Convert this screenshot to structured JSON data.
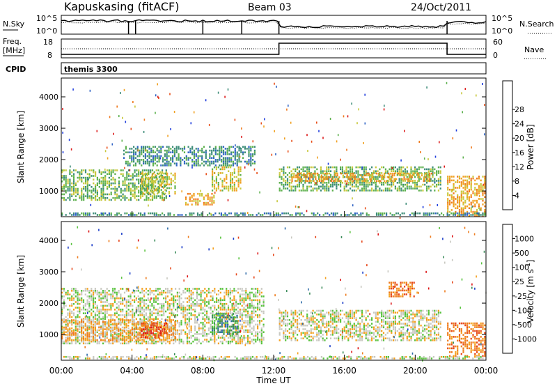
{
  "header": {
    "station": "Kapuskasing (fitACF)",
    "beam": "Beam 03",
    "date": "24/Oct/2011"
  },
  "summary": {
    "nsky_label": "N.Sky",
    "nsearch_label": "N.Search",
    "nsky_ticks": [
      "10^5",
      "10^0"
    ],
    "nsearch_ticks": [
      "10^5",
      "10^0"
    ],
    "freq_label_1": "Freq.",
    "freq_label_2": "[MHz]",
    "freq_ticks": [
      "18",
      "8"
    ],
    "nave_label": "Nave",
    "nave_ticks": [
      "60",
      "0"
    ],
    "cpid_label": "CPID",
    "cpid_value": "themis 3300",
    "markers_hours": [
      3.8,
      4.2,
      8.0,
      10.2,
      12.3,
      21.8
    ]
  },
  "x_axis": {
    "label": "Time UT",
    "ticks": [
      "00:00",
      "04:00",
      "08:00",
      "12:00",
      "16:00",
      "20:00",
      "00:00"
    ],
    "range_hours": [
      0,
      24
    ]
  },
  "chart_data": [
    {
      "type": "heatmap",
      "name": "power",
      "ylabel": "Slant Range [km]",
      "ylim": [
        180,
        4600
      ],
      "yticks": [
        "1000",
        "2000",
        "3000",
        "4000"
      ],
      "colorbar": {
        "label": "Power [dB]",
        "ticks": [
          "4",
          "8",
          "12",
          "16",
          "20",
          "24",
          "28"
        ],
        "colors": [
          "#1e3cdc",
          "#2f63c4",
          "#3c8c78",
          "#5cb04c",
          "#c8c83c",
          "#f0a020",
          "#ef7a1e",
          "#e84f1a",
          "#dc1a1a"
        ]
      },
      "regions": [
        {
          "t": [
            0.0,
            6.0
          ],
          "r": [
            700,
            1700
          ],
          "level": 3
        },
        {
          "t": [
            3.5,
            11.0
          ],
          "r": [
            1800,
            2450
          ],
          "level": 2
        },
        {
          "t": [
            4.5,
            6.5
          ],
          "r": [
            900,
            1600
          ],
          "level": 4
        },
        {
          "t": [
            7.0,
            8.7
          ],
          "r": [
            550,
            950
          ],
          "level": 5
        },
        {
          "t": [
            8.5,
            10.2
          ],
          "r": [
            1000,
            1800
          ],
          "level": 4
        },
        {
          "t": [
            12.3,
            21.5
          ],
          "r": [
            1000,
            1800
          ],
          "level": 3
        },
        {
          "t": [
            13.0,
            21.0
          ],
          "r": [
            1300,
            1600
          ],
          "level": 5
        },
        {
          "t": [
            21.8,
            24.0
          ],
          "r": [
            200,
            1500
          ],
          "level": 5
        },
        {
          "t": [
            0.0,
            24.0
          ],
          "r": [
            220,
            320
          ],
          "level": 2
        }
      ]
    },
    {
      "type": "heatmap",
      "name": "velocity",
      "ylabel": "Slant Range [km]",
      "ylim": [
        180,
        4600
      ],
      "yticks": [
        "1000",
        "2000",
        "3000",
        "4000"
      ],
      "colorbar": {
        "label": "Velocity [m s^-1]",
        "ticks": [
          "1000",
          "500",
          "100",
          "25",
          "-25",
          "-100",
          "-500",
          "-1000"
        ],
        "colors": [
          "#1a3cc8",
          "#2c6aa8",
          "#3b8c5a",
          "#57c23c",
          "#c8c8c0",
          "#f4a01c",
          "#ee7b1c",
          "#e6461a",
          "#dc1414"
        ]
      },
      "regions": [
        {
          "t": [
            0.0,
            11.5
          ],
          "r": [
            700,
            2500
          ],
          "level": 4
        },
        {
          "t": [
            12.3,
            21.5
          ],
          "r": [
            800,
            1800
          ],
          "level": 4
        },
        {
          "t": [
            0.0,
            6.5
          ],
          "r": [
            800,
            1500
          ],
          "level": 5
        },
        {
          "t": [
            4.5,
            6.0
          ],
          "r": [
            900,
            1400
          ],
          "level": 7
        },
        {
          "t": [
            8.5,
            10.0
          ],
          "r": [
            1000,
            1700
          ],
          "level": 2
        },
        {
          "t": [
            18.5,
            20.0
          ],
          "r": [
            2200,
            2700
          ],
          "level": 6
        },
        {
          "t": [
            21.8,
            24.0
          ],
          "r": [
            300,
            1400
          ],
          "level": 6
        },
        {
          "t": [
            0.0,
            24.0
          ],
          "r": [
            220,
            320
          ],
          "level": 4
        }
      ]
    }
  ]
}
